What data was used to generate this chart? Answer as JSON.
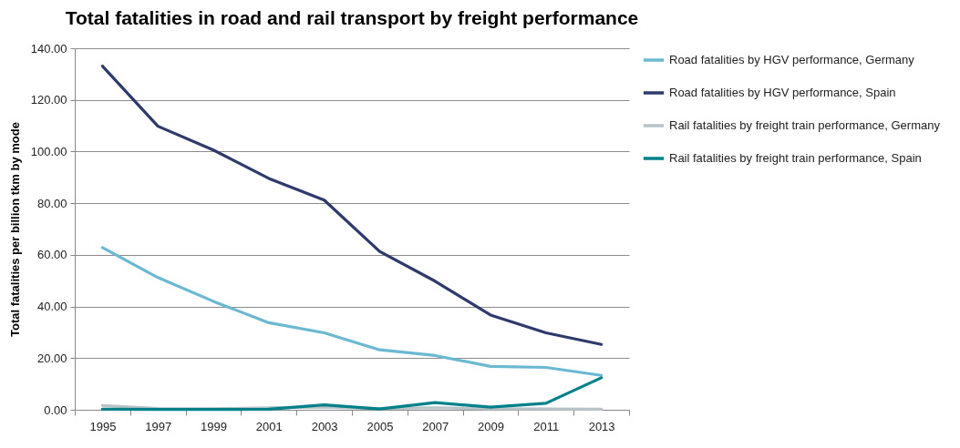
{
  "chart_data": {
    "type": "line",
    "title": "Total fatalities in road and rail transport by freight performance",
    "ylabel": "Total fatalities per billion tkm by mode",
    "categories": [
      "1995",
      "1997",
      "1999",
      "2001",
      "2003",
      "2005",
      "2007",
      "2009",
      "2011",
      "2013"
    ],
    "series": [
      {
        "name": "Road fatalities by HGV performance, Germany",
        "color": "#6bb8d2",
        "values": [
          62.8,
          51.2,
          42,
          33.7,
          29.8,
          23.2,
          21,
          16.8,
          16.4,
          13.3
        ]
      },
      {
        "name": "Road fatalities by HGV performance, Spain",
        "color": "#2e3a6b",
        "values": [
          133.1,
          109.8,
          100.6,
          89.6,
          81.2,
          61.3,
          49.8,
          36.7,
          29.8,
          25.3
        ]
      },
      {
        "name": "Rail fatalities by freight train performance, Germany",
        "color": "#b7c3c6",
        "values": [
          1.6,
          0.5,
          0.4,
          0.8,
          1.0,
          0.5,
          0.8,
          0.4,
          0.3,
          0.2
        ]
      },
      {
        "name": "Rail fatalities by freight train performance, Spain",
        "color": "#00818a",
        "values": [
          0.2,
          0.1,
          0.1,
          0.2,
          1.9,
          0.3,
          2.8,
          1,
          2.5,
          12.4
        ]
      }
    ],
    "ylim": [
      0,
      140
    ],
    "yticks": [
      {
        "value": 0,
        "label": "0.00"
      },
      {
        "value": 20,
        "label": "20.00"
      },
      {
        "value": 40,
        "label": "40.00"
      },
      {
        "value": 60,
        "label": "60.00"
      },
      {
        "value": 80,
        "label": "80.00"
      },
      {
        "value": 100,
        "label": "100.00"
      },
      {
        "value": 120,
        "label": "120.00"
      },
      {
        "value": 140,
        "label": "140.00"
      }
    ],
    "grid": "y",
    "legend": "right",
    "marker": "none",
    "line_style": "solid"
  }
}
